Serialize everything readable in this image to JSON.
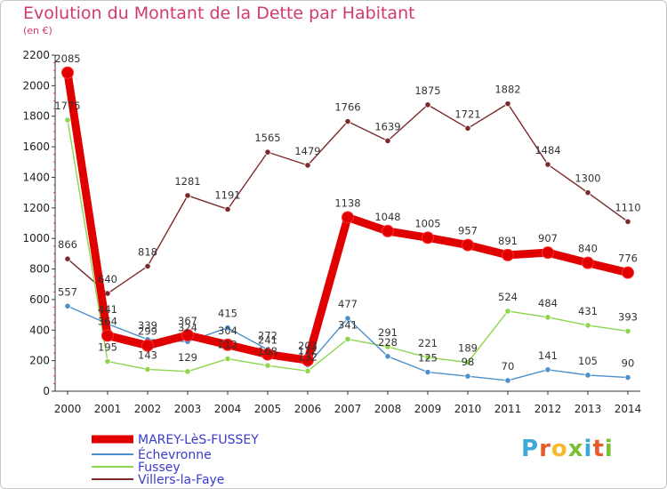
{
  "title": "Evolution du Montant de la Dette par Habitant",
  "subtitle": "(en €)",
  "logo": {
    "letters": [
      "P",
      "r",
      "o",
      "x",
      "i",
      "t",
      "i"
    ],
    "colors": [
      "#3aa8d8",
      "#e85b2b",
      "#f6b92b",
      "#7cbf35",
      "#3aa8d8",
      "#e85b2b",
      "#7cbf35"
    ]
  },
  "chart_data": {
    "type": "line",
    "title": "Evolution du Montant de la Dette par Habitant",
    "ylabel": "(en €)",
    "xlabel": "",
    "ylim": [
      0,
      2200
    ],
    "yticks": [
      0,
      200,
      400,
      600,
      800,
      1000,
      1200,
      1400,
      1600,
      1800,
      2000,
      2200
    ],
    "categories": [
      "2000",
      "2001",
      "2002",
      "2003",
      "2004",
      "2005",
      "2006",
      "2007",
      "2008",
      "2009",
      "2010",
      "2011",
      "2012",
      "2013",
      "2014"
    ],
    "legend_position": "bottom-left",
    "grid": false,
    "series": [
      {
        "name": "MAREY-LèS-FUSSEY",
        "color": "#e00000",
        "values": [
          2085,
          364,
          299,
          367,
          304,
          241,
          203,
          1138,
          1048,
          1005,
          957,
          891,
          907,
          840,
          776
        ]
      },
      {
        "name": "Échevronne",
        "color": "#4d8fcc",
        "values": [
          557,
          441,
          339,
          324,
          415,
          272,
          172,
          477,
          228,
          125,
          98,
          70,
          141,
          105,
          90
        ]
      },
      {
        "name": "Fussey",
        "color": "#8ed54e",
        "values": [
          1775,
          195,
          143,
          129,
          212,
          168,
          132,
          341,
          291,
          221,
          189,
          524,
          484,
          431,
          393
        ]
      },
      {
        "name": "Villers-la-Faye",
        "color": "#7a2a2a",
        "values": [
          866,
          640,
          818,
          1281,
          1191,
          1565,
          1479,
          1766,
          1639,
          1875,
          1721,
          1882,
          1484,
          1300,
          1110
        ]
      }
    ]
  }
}
